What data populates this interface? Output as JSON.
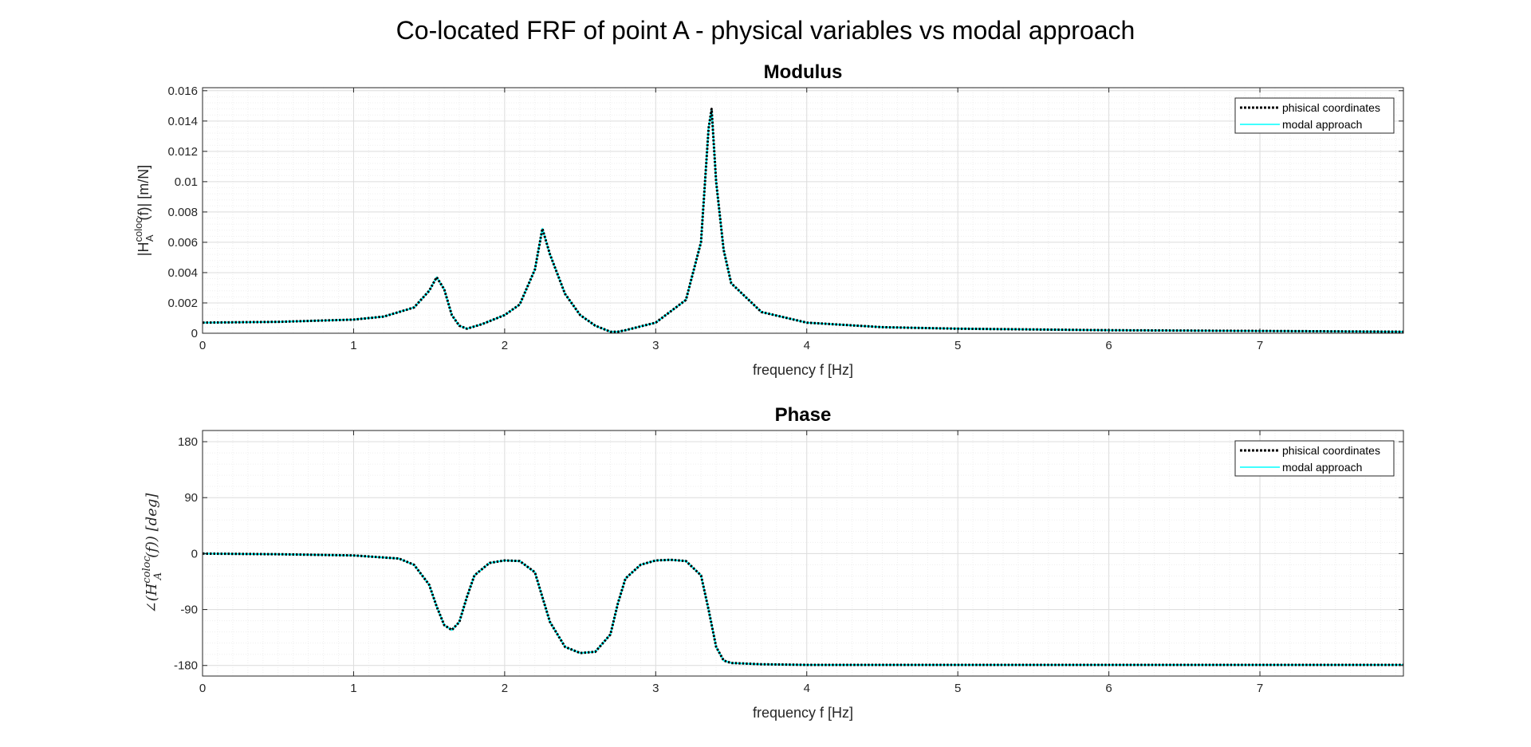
{
  "figure": {
    "title": "Co-located FRF of point A - physical variables vs modal approach"
  },
  "colors": {
    "physical": "#000000",
    "modal": "#00ffff",
    "axis": "#262626",
    "grid_major": "#dcdcdc",
    "grid_minor": "#efefef"
  },
  "legend": {
    "entries": [
      "phisical coordinates",
      "modal approach"
    ],
    "placement": "top-right"
  },
  "chart_data": [
    {
      "type": "line",
      "title": "Modulus",
      "xlabel": "frequency f [Hz]",
      "ylabel": {
        "base": "|H",
        "sup": "coloc",
        "sub": "A",
        "tail": "(f)|   [m/N]"
      },
      "xlim": [
        0,
        7.95
      ],
      "ylim": [
        0,
        0.0162
      ],
      "xticks": [
        0,
        1,
        2,
        3,
        4,
        5,
        6,
        7
      ],
      "xtick_labels": [
        "0",
        "1",
        "2",
        "3",
        "4",
        "5",
        "6",
        "7"
      ],
      "yticks": [
        0,
        0.002,
        0.004,
        0.006,
        0.008,
        0.01,
        0.012,
        0.014,
        0.016
      ],
      "ytick_labels": [
        "0",
        "0.002",
        "0.004",
        "0.006",
        "0.008",
        "0.01",
        "0.012",
        "0.014",
        "0.016"
      ],
      "grid": "on (major and minor)",
      "series": [
        {
          "name": "phisical coordinates",
          "style": "dotted",
          "x": [
            0,
            0.5,
            1.0,
            1.2,
            1.4,
            1.5,
            1.55,
            1.6,
            1.65,
            1.7,
            1.75,
            1.85,
            2.0,
            2.1,
            2.2,
            2.25,
            2.3,
            2.4,
            2.5,
            2.6,
            2.7,
            2.75,
            2.8,
            3.0,
            3.2,
            3.3,
            3.35,
            3.37,
            3.4,
            3.45,
            3.5,
            3.7,
            4.0,
            4.5,
            5.0,
            6.0,
            7.0,
            7.95
          ],
          "y": [
            0.0007,
            0.00075,
            0.0009,
            0.0011,
            0.0017,
            0.0028,
            0.0037,
            0.0029,
            0.0012,
            0.0005,
            0.0003,
            0.0006,
            0.0012,
            0.0019,
            0.0042,
            0.0069,
            0.0052,
            0.0026,
            0.0012,
            0.0005,
            0.0001,
            0.0001,
            0.0002,
            0.0007,
            0.0022,
            0.006,
            0.0135,
            0.0148,
            0.01,
            0.0055,
            0.0033,
            0.0014,
            0.0007,
            0.0004,
            0.0003,
            0.0002,
            0.00015,
            0.0001
          ]
        },
        {
          "name": "modal approach",
          "style": "solid",
          "x": [
            0,
            0.5,
            1.0,
            1.2,
            1.4,
            1.5,
            1.55,
            1.6,
            1.65,
            1.7,
            1.75,
            1.85,
            2.0,
            2.1,
            2.2,
            2.25,
            2.3,
            2.4,
            2.5,
            2.6,
            2.7,
            2.75,
            2.8,
            3.0,
            3.2,
            3.3,
            3.35,
            3.37,
            3.4,
            3.45,
            3.5,
            3.7,
            4.0,
            4.5,
            5.0,
            6.0,
            7.0,
            7.95
          ],
          "y": [
            0.0007,
            0.00075,
            0.0009,
            0.0011,
            0.0017,
            0.0028,
            0.0037,
            0.0029,
            0.0012,
            0.0005,
            0.0003,
            0.0006,
            0.0012,
            0.0019,
            0.0042,
            0.0069,
            0.0052,
            0.0026,
            0.0012,
            0.0005,
            0.0001,
            0.0001,
            0.0002,
            0.0007,
            0.0022,
            0.006,
            0.0135,
            0.0148,
            0.01,
            0.0055,
            0.0033,
            0.0014,
            0.0007,
            0.0004,
            0.0003,
            0.0002,
            0.00015,
            0.0001
          ]
        }
      ]
    },
    {
      "type": "line",
      "title": "Phase",
      "xlabel": "frequency f [Hz]",
      "ylabel": {
        "base": "∠(H",
        "sup": "coloc",
        "sub": "A",
        "tail": "(f))   [deg]"
      },
      "xlim": [
        0,
        7.95
      ],
      "ylim": [
        -197,
        198
      ],
      "xticks": [
        0,
        1,
        2,
        3,
        4,
        5,
        6,
        7
      ],
      "xtick_labels": [
        "0",
        "1",
        "2",
        "3",
        "4",
        "5",
        "6",
        "7"
      ],
      "yticks": [
        -180,
        -90,
        0,
        90,
        180
      ],
      "ytick_labels": [
        "-180",
        "-90",
        "0",
        "90",
        "180"
      ],
      "grid": "on (major and minor)",
      "series": [
        {
          "name": "phisical coordinates",
          "style": "dotted",
          "x": [
            0,
            0.5,
            1.0,
            1.3,
            1.4,
            1.5,
            1.55,
            1.6,
            1.65,
            1.7,
            1.75,
            1.8,
            1.9,
            2.0,
            2.1,
            2.2,
            2.25,
            2.3,
            2.4,
            2.5,
            2.6,
            2.7,
            2.75,
            2.8,
            2.9,
            3.0,
            3.1,
            3.2,
            3.3,
            3.35,
            3.4,
            3.45,
            3.5,
            3.7,
            4.0,
            5.0,
            6.0,
            7.0,
            7.95
          ],
          "y": [
            0,
            -1,
            -3,
            -8,
            -18,
            -50,
            -85,
            -115,
            -123,
            -110,
            -70,
            -35,
            -15,
            -11,
            -12,
            -30,
            -70,
            -110,
            -150,
            -160,
            -158,
            -130,
            -80,
            -40,
            -18,
            -11,
            -10,
            -12,
            -35,
            -90,
            -150,
            -172,
            -176,
            -178,
            -179,
            -179,
            -179,
            -179,
            -179
          ]
        },
        {
          "name": "modal approach",
          "style": "solid",
          "x": [
            0,
            0.5,
            1.0,
            1.3,
            1.4,
            1.5,
            1.55,
            1.6,
            1.65,
            1.7,
            1.75,
            1.8,
            1.9,
            2.0,
            2.1,
            2.2,
            2.25,
            2.3,
            2.4,
            2.5,
            2.6,
            2.7,
            2.75,
            2.8,
            2.9,
            3.0,
            3.1,
            3.2,
            3.3,
            3.35,
            3.4,
            3.45,
            3.5,
            3.7,
            4.0,
            5.0,
            6.0,
            7.0,
            7.95
          ],
          "y": [
            0,
            -1,
            -3,
            -8,
            -18,
            -50,
            -85,
            -115,
            -123,
            -110,
            -70,
            -35,
            -15,
            -11,
            -12,
            -30,
            -70,
            -110,
            -150,
            -160,
            -158,
            -130,
            -80,
            -40,
            -18,
            -11,
            -10,
            -12,
            -35,
            -90,
            -150,
            -172,
            -176,
            -178,
            -179,
            -179,
            -179,
            -179,
            -179
          ]
        }
      ]
    }
  ]
}
